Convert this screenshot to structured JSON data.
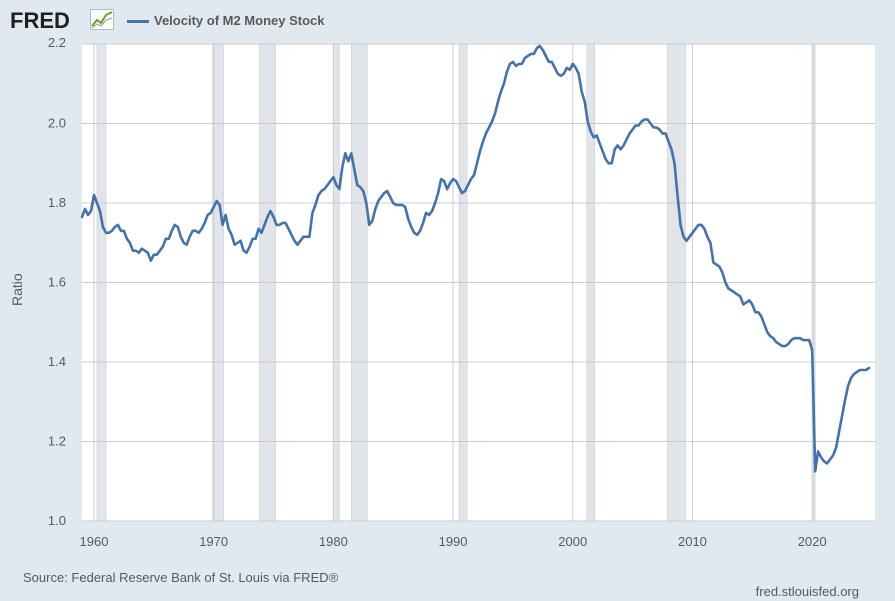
{
  "header": {
    "logo_text": "FRED",
    "logo_icon": "line-chart-icon"
  },
  "chart_data": {
    "type": "line",
    "title": "",
    "ylabel": "Ratio",
    "xlabel": "",
    "x_tick_labels": [
      "1960",
      "1970",
      "1980",
      "1990",
      "2000",
      "2010",
      "2020"
    ],
    "y_tick_labels": [
      "1.0",
      "1.2",
      "1.4",
      "1.6",
      "1.8",
      "2.0",
      "2.2"
    ],
    "xlim": [
      1959.0,
      2025.25
    ],
    "ylim": [
      1.0,
      2.2
    ],
    "grid": true,
    "legend_placement": "top-left",
    "colors": {
      "line": "#4572a7",
      "recession": "#e1e5ea",
      "grid": "#cccccc",
      "plot_bg": "#ffffff",
      "page_bg": "#e1e9f0"
    },
    "recessions": [
      [
        1960.25,
        1961.0
      ],
      [
        1969.92,
        1970.83
      ],
      [
        1973.83,
        1975.17
      ],
      [
        1980.0,
        1980.5
      ],
      [
        1981.5,
        1982.83
      ],
      [
        1990.5,
        1991.17
      ],
      [
        2001.17,
        2001.83
      ],
      [
        2007.92,
        2009.42
      ],
      [
        2020.08,
        2020.25
      ]
    ],
    "series": [
      {
        "name": "Velocity of M2 Money Stock",
        "points": [
          [
            1959.0,
            1.765
          ],
          [
            1959.25,
            1.785
          ],
          [
            1959.5,
            1.77
          ],
          [
            1959.75,
            1.78
          ],
          [
            1960.0,
            1.82
          ],
          [
            1960.25,
            1.8
          ],
          [
            1960.5,
            1.78
          ],
          [
            1960.75,
            1.74
          ],
          [
            1961.0,
            1.725
          ],
          [
            1961.25,
            1.725
          ],
          [
            1961.5,
            1.73
          ],
          [
            1961.75,
            1.74
          ],
          [
            1962.0,
            1.745
          ],
          [
            1962.25,
            1.73
          ],
          [
            1962.5,
            1.73
          ],
          [
            1962.75,
            1.71
          ],
          [
            1963.0,
            1.7
          ],
          [
            1963.25,
            1.68
          ],
          [
            1963.5,
            1.68
          ],
          [
            1963.75,
            1.675
          ],
          [
            1964.0,
            1.685
          ],
          [
            1964.25,
            1.68
          ],
          [
            1964.5,
            1.675
          ],
          [
            1964.75,
            1.655
          ],
          [
            1965.0,
            1.67
          ],
          [
            1965.25,
            1.67
          ],
          [
            1965.5,
            1.68
          ],
          [
            1965.75,
            1.69
          ],
          [
            1966.0,
            1.71
          ],
          [
            1966.25,
            1.71
          ],
          [
            1966.5,
            1.73
          ],
          [
            1966.75,
            1.745
          ],
          [
            1967.0,
            1.74
          ],
          [
            1967.25,
            1.715
          ],
          [
            1967.5,
            1.7
          ],
          [
            1967.75,
            1.695
          ],
          [
            1968.0,
            1.715
          ],
          [
            1968.25,
            1.73
          ],
          [
            1968.5,
            1.73
          ],
          [
            1968.75,
            1.725
          ],
          [
            1969.0,
            1.735
          ],
          [
            1969.25,
            1.75
          ],
          [
            1969.5,
            1.77
          ],
          [
            1969.75,
            1.775
          ],
          [
            1970.0,
            1.79
          ],
          [
            1970.25,
            1.805
          ],
          [
            1970.5,
            1.795
          ],
          [
            1970.75,
            1.745
          ],
          [
            1971.0,
            1.77
          ],
          [
            1971.25,
            1.735
          ],
          [
            1971.5,
            1.72
          ],
          [
            1971.75,
            1.695
          ],
          [
            1972.0,
            1.7
          ],
          [
            1972.25,
            1.705
          ],
          [
            1972.5,
            1.68
          ],
          [
            1972.75,
            1.675
          ],
          [
            1973.0,
            1.69
          ],
          [
            1973.25,
            1.71
          ],
          [
            1973.5,
            1.71
          ],
          [
            1973.75,
            1.735
          ],
          [
            1974.0,
            1.725
          ],
          [
            1974.25,
            1.745
          ],
          [
            1974.5,
            1.765
          ],
          [
            1974.75,
            1.78
          ],
          [
            1975.0,
            1.765
          ],
          [
            1975.25,
            1.745
          ],
          [
            1975.5,
            1.745
          ],
          [
            1975.75,
            1.75
          ],
          [
            1976.0,
            1.75
          ],
          [
            1976.25,
            1.735
          ],
          [
            1976.5,
            1.72
          ],
          [
            1976.75,
            1.705
          ],
          [
            1977.0,
            1.695
          ],
          [
            1977.25,
            1.705
          ],
          [
            1977.5,
            1.715
          ],
          [
            1977.75,
            1.715
          ],
          [
            1978.0,
            1.715
          ],
          [
            1978.25,
            1.775
          ],
          [
            1978.5,
            1.795
          ],
          [
            1978.75,
            1.82
          ],
          [
            1979.0,
            1.83
          ],
          [
            1979.25,
            1.835
          ],
          [
            1979.5,
            1.845
          ],
          [
            1979.75,
            1.855
          ],
          [
            1980.0,
            1.865
          ],
          [
            1980.25,
            1.845
          ],
          [
            1980.5,
            1.835
          ],
          [
            1980.75,
            1.89
          ],
          [
            1981.0,
            1.925
          ],
          [
            1981.25,
            1.905
          ],
          [
            1981.5,
            1.925
          ],
          [
            1981.75,
            1.885
          ],
          [
            1982.0,
            1.845
          ],
          [
            1982.25,
            1.84
          ],
          [
            1982.5,
            1.83
          ],
          [
            1982.75,
            1.8
          ],
          [
            1983.0,
            1.745
          ],
          [
            1983.25,
            1.755
          ],
          [
            1983.5,
            1.785
          ],
          [
            1983.75,
            1.805
          ],
          [
            1984.0,
            1.815
          ],
          [
            1984.25,
            1.825
          ],
          [
            1984.5,
            1.83
          ],
          [
            1984.75,
            1.815
          ],
          [
            1985.0,
            1.8
          ],
          [
            1985.25,
            1.795
          ],
          [
            1985.5,
            1.795
          ],
          [
            1985.75,
            1.795
          ],
          [
            1986.0,
            1.79
          ],
          [
            1986.25,
            1.76
          ],
          [
            1986.5,
            1.74
          ],
          [
            1986.75,
            1.725
          ],
          [
            1987.0,
            1.72
          ],
          [
            1987.25,
            1.73
          ],
          [
            1987.5,
            1.75
          ],
          [
            1987.75,
            1.775
          ],
          [
            1988.0,
            1.77
          ],
          [
            1988.25,
            1.78
          ],
          [
            1988.5,
            1.8
          ],
          [
            1988.75,
            1.825
          ],
          [
            1989.0,
            1.86
          ],
          [
            1989.25,
            1.855
          ],
          [
            1989.5,
            1.835
          ],
          [
            1989.75,
            1.85
          ],
          [
            1990.0,
            1.86
          ],
          [
            1990.25,
            1.855
          ],
          [
            1990.5,
            1.84
          ],
          [
            1990.75,
            1.825
          ],
          [
            1991.0,
            1.83
          ],
          [
            1991.25,
            1.845
          ],
          [
            1991.5,
            1.86
          ],
          [
            1991.75,
            1.87
          ],
          [
            1992.0,
            1.9
          ],
          [
            1992.25,
            1.93
          ],
          [
            1992.5,
            1.955
          ],
          [
            1992.75,
            1.975
          ],
          [
            1993.0,
            1.99
          ],
          [
            1993.25,
            2.005
          ],
          [
            1993.5,
            2.025
          ],
          [
            1993.75,
            2.055
          ],
          [
            1994.0,
            2.08
          ],
          [
            1994.25,
            2.1
          ],
          [
            1994.5,
            2.13
          ],
          [
            1994.75,
            2.15
          ],
          [
            1995.0,
            2.155
          ],
          [
            1995.25,
            2.145
          ],
          [
            1995.5,
            2.15
          ],
          [
            1995.75,
            2.15
          ],
          [
            1996.0,
            2.165
          ],
          [
            1996.25,
            2.17
          ],
          [
            1996.5,
            2.175
          ],
          [
            1996.75,
            2.175
          ],
          [
            1997.0,
            2.19
          ],
          [
            1997.25,
            2.195
          ],
          [
            1997.5,
            2.185
          ],
          [
            1997.75,
            2.17
          ],
          [
            1998.0,
            2.155
          ],
          [
            1998.25,
            2.155
          ],
          [
            1998.5,
            2.14
          ],
          [
            1998.75,
            2.125
          ],
          [
            1999.0,
            2.12
          ],
          [
            1999.25,
            2.125
          ],
          [
            1999.5,
            2.14
          ],
          [
            1999.75,
            2.135
          ],
          [
            2000.0,
            2.15
          ],
          [
            2000.25,
            2.14
          ],
          [
            2000.5,
            2.125
          ],
          [
            2000.75,
            2.08
          ],
          [
            2001.0,
            2.055
          ],
          [
            2001.25,
            2.005
          ],
          [
            2001.5,
            1.98
          ],
          [
            2001.75,
            1.965
          ],
          [
            2002.0,
            1.97
          ],
          [
            2002.25,
            1.95
          ],
          [
            2002.5,
            1.93
          ],
          [
            2002.75,
            1.91
          ],
          [
            2003.0,
            1.9
          ],
          [
            2003.25,
            1.9
          ],
          [
            2003.5,
            1.935
          ],
          [
            2003.75,
            1.945
          ],
          [
            2004.0,
            1.935
          ],
          [
            2004.25,
            1.945
          ],
          [
            2004.5,
            1.96
          ],
          [
            2004.75,
            1.975
          ],
          [
            2005.0,
            1.985
          ],
          [
            2005.25,
            1.995
          ],
          [
            2005.5,
            1.995
          ],
          [
            2005.75,
            2.005
          ],
          [
            2006.0,
            2.01
          ],
          [
            2006.25,
            2.01
          ],
          [
            2006.5,
            2.0
          ],
          [
            2006.75,
            1.99
          ],
          [
            2007.0,
            1.99
          ],
          [
            2007.25,
            1.985
          ],
          [
            2007.5,
            1.975
          ],
          [
            2007.75,
            1.975
          ],
          [
            2008.0,
            1.955
          ],
          [
            2008.25,
            1.935
          ],
          [
            2008.5,
            1.9
          ],
          [
            2008.75,
            1.82
          ],
          [
            2009.0,
            1.745
          ],
          [
            2009.25,
            1.715
          ],
          [
            2009.5,
            1.705
          ],
          [
            2009.75,
            1.715
          ],
          [
            2010.0,
            1.725
          ],
          [
            2010.25,
            1.735
          ],
          [
            2010.5,
            1.745
          ],
          [
            2010.75,
            1.745
          ],
          [
            2011.0,
            1.735
          ],
          [
            2011.25,
            1.715
          ],
          [
            2011.5,
            1.7
          ],
          [
            2011.75,
            1.65
          ],
          [
            2012.0,
            1.645
          ],
          [
            2012.25,
            1.64
          ],
          [
            2012.5,
            1.625
          ],
          [
            2012.75,
            1.6
          ],
          [
            2013.0,
            1.585
          ],
          [
            2013.25,
            1.58
          ],
          [
            2013.5,
            1.575
          ],
          [
            2013.75,
            1.57
          ],
          [
            2014.0,
            1.565
          ],
          [
            2014.25,
            1.545
          ],
          [
            2014.5,
            1.55
          ],
          [
            2014.75,
            1.555
          ],
          [
            2015.0,
            1.545
          ],
          [
            2015.25,
            1.525
          ],
          [
            2015.5,
            1.525
          ],
          [
            2015.75,
            1.515
          ],
          [
            2016.0,
            1.495
          ],
          [
            2016.25,
            1.475
          ],
          [
            2016.5,
            1.465
          ],
          [
            2016.75,
            1.46
          ],
          [
            2017.0,
            1.45
          ],
          [
            2017.25,
            1.445
          ],
          [
            2017.5,
            1.44
          ],
          [
            2017.75,
            1.44
          ],
          [
            2018.0,
            1.445
          ],
          [
            2018.25,
            1.455
          ],
          [
            2018.5,
            1.46
          ],
          [
            2018.75,
            1.46
          ],
          [
            2019.0,
            1.46
          ],
          [
            2019.25,
            1.455
          ],
          [
            2019.5,
            1.455
          ],
          [
            2019.75,
            1.455
          ],
          [
            2020.0,
            1.43
          ],
          [
            2020.25,
            1.125
          ],
          [
            2020.5,
            1.175
          ],
          [
            2020.75,
            1.16
          ],
          [
            2021.0,
            1.15
          ],
          [
            2021.25,
            1.145
          ],
          [
            2021.5,
            1.155
          ],
          [
            2021.75,
            1.165
          ],
          [
            2022.0,
            1.185
          ],
          [
            2022.25,
            1.225
          ],
          [
            2022.5,
            1.265
          ],
          [
            2022.75,
            1.305
          ],
          [
            2023.0,
            1.34
          ],
          [
            2023.25,
            1.36
          ],
          [
            2023.5,
            1.37
          ],
          [
            2023.75,
            1.375
          ],
          [
            2024.0,
            1.38
          ],
          [
            2024.25,
            1.38
          ],
          [
            2024.5,
            1.38
          ],
          [
            2024.75,
            1.385
          ]
        ]
      }
    ]
  },
  "footer": {
    "source": "Source: Federal Reserve Bank of St. Louis via FRED®",
    "site": "fred.stlouisfed.org"
  }
}
